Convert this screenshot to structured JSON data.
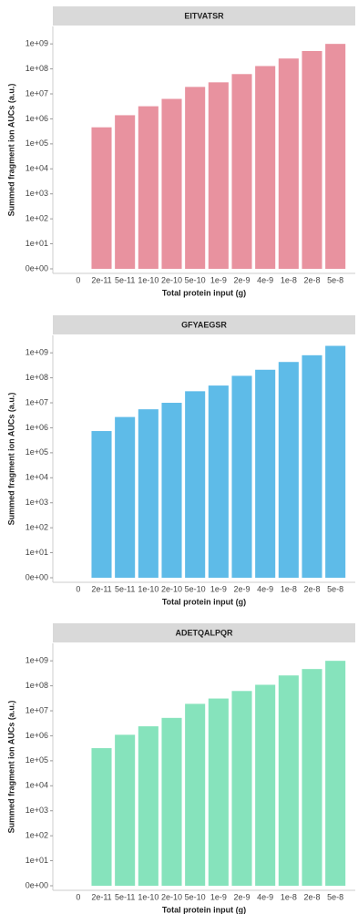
{
  "chart_data": [
    {
      "type": "bar",
      "title": "EITVATSR",
      "x_label": "Total protein input (g)",
      "y_label": "Summed fragment ion AUCs (a.u.)",
      "categories": [
        "0",
        "2e-11",
        "5e-11",
        "1e-10",
        "2e-10",
        "5e-10",
        "1e-9",
        "2e-9",
        "4e-9",
        "1e-8",
        "2e-8",
        "5e-8"
      ],
      "values": [
        null,
        460000,
        1400000,
        3200000,
        6300000,
        19000000,
        29000000,
        62000000,
        130000000,
        260000000,
        520000000,
        1000000000
      ],
      "color": "#e8929f",
      "yscale": "pseudo-log",
      "ylim": [
        0,
        5000000000
      ],
      "yticks": [
        {
          "value": 0,
          "label": "0e+00"
        },
        {
          "value": 10,
          "label": "1e+01"
        },
        {
          "value": 100,
          "label": "1e+02"
        },
        {
          "value": 1000,
          "label": "1e+03"
        },
        {
          "value": 10000,
          "label": "1e+04"
        },
        {
          "value": 100000,
          "label": "1e+05"
        },
        {
          "value": 1000000,
          "label": "1e+06"
        },
        {
          "value": 10000000,
          "label": "1e+07"
        },
        {
          "value": 100000000,
          "label": "1e+08"
        },
        {
          "value": 1000000000,
          "label": "1e+09"
        }
      ]
    },
    {
      "type": "bar",
      "title": "GFYAEGSR",
      "x_label": "Total protein input (g)",
      "y_label": "Summed fragment ion AUCs (a.u.)",
      "categories": [
        "0",
        "2e-11",
        "5e-11",
        "1e-10",
        "2e-10",
        "5e-10",
        "1e-9",
        "2e-9",
        "4e-9",
        "1e-8",
        "2e-8",
        "5e-8"
      ],
      "values": [
        null,
        740000,
        2700000,
        5500000,
        10000000,
        29000000,
        49000000,
        120000000,
        210000000,
        430000000,
        800000000,
        1900000000
      ],
      "color": "#5ebbe8",
      "yscale": "pseudo-log",
      "ylim": [
        0,
        5000000000
      ],
      "yticks": [
        {
          "value": 0,
          "label": "0e+00"
        },
        {
          "value": 10,
          "label": "1e+01"
        },
        {
          "value": 100,
          "label": "1e+02"
        },
        {
          "value": 1000,
          "label": "1e+03"
        },
        {
          "value": 10000,
          "label": "1e+04"
        },
        {
          "value": 100000,
          "label": "1e+05"
        },
        {
          "value": 1000000,
          "label": "1e+06"
        },
        {
          "value": 10000000,
          "label": "1e+07"
        },
        {
          "value": 100000000,
          "label": "1e+08"
        },
        {
          "value": 1000000000,
          "label": "1e+09"
        }
      ]
    },
    {
      "type": "bar",
      "title": "ADETQALPQR",
      "x_label": "Total protein input (g)",
      "y_label": "Summed fragment ion AUCs (a.u.)",
      "categories": [
        "0",
        "2e-11",
        "5e-11",
        "1e-10",
        "2e-10",
        "5e-10",
        "1e-9",
        "2e-9",
        "4e-9",
        "1e-8",
        "2e-8",
        "5e-8"
      ],
      "values": [
        null,
        320000,
        1100000,
        2400000,
        5200000,
        19000000,
        31000000,
        62000000,
        110000000,
        260000000,
        470000000,
        1000000000
      ],
      "color": "#86e3bc",
      "yscale": "pseudo-log",
      "ylim": [
        0,
        5000000000
      ],
      "yticks": [
        {
          "value": 0,
          "label": "0e+00"
        },
        {
          "value": 10,
          "label": "1e+01"
        },
        {
          "value": 100,
          "label": "1e+02"
        },
        {
          "value": 1000,
          "label": "1e+03"
        },
        {
          "value": 10000,
          "label": "1e+04"
        },
        {
          "value": 100000,
          "label": "1e+05"
        },
        {
          "value": 1000000,
          "label": "1e+06"
        },
        {
          "value": 10000000,
          "label": "1e+07"
        },
        {
          "value": 100000000,
          "label": "1e+08"
        },
        {
          "value": 1000000000,
          "label": "1e+09"
        }
      ]
    }
  ]
}
